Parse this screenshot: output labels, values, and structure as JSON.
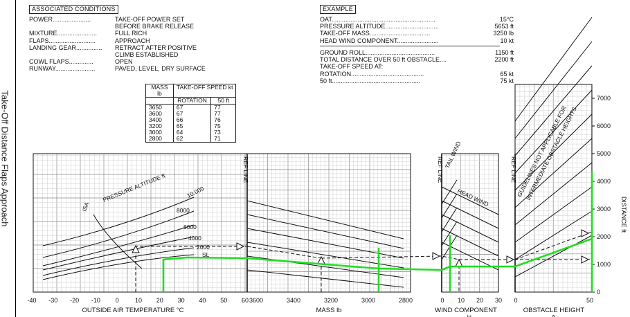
{
  "side_title": "Take-Off Distance Flaps Approach",
  "associated": {
    "heading": "ASSOCIATED CONDITIONS",
    "rows": [
      {
        "key": "POWER......................",
        "value": "TAKE-OFF POWER SET"
      },
      {
        "key": "",
        "value": "BEFORE BRAKE RELEASE"
      },
      {
        "key": "MIXTURE.......................",
        "value": "FULL RICH"
      },
      {
        "key": "FLAPS...........................",
        "value": "APPROACH"
      },
      {
        "key": "LANDING GEAR...............",
        "value": "RETRACT AFTER POSITIVE"
      },
      {
        "key": "",
        "value": "CLIMB ESTABLISHED"
      },
      {
        "key": "COWL FLAPS..............",
        "value": "OPEN"
      },
      {
        "key": "RUNWAY.......................",
        "value": "PAVED, LEVEL, DRY SURFACE"
      }
    ]
  },
  "example": {
    "heading": "EXAMPLE",
    "rows1": [
      {
        "key": "OAT............................................................",
        "value": "15°C"
      },
      {
        "key": "PRESSURE ALTITUDE...............................",
        "value": "5653 ft"
      },
      {
        "key": "TAKE-OFF MASS...................................",
        "value": "3250 lb"
      },
      {
        "key": "HEAD WIND COMPONENT........................",
        "value": "10 kt"
      }
    ],
    "rows2": [
      {
        "key": "GROUND ROLL........................................",
        "value": "1150 ft"
      },
      {
        "key": "TOTAL DISTANCE OVER 50 ft OBSTACLE....",
        "value": "2200 ft"
      },
      {
        "key": "TAKE-OFF SPEED AT:",
        "value": ""
      },
      {
        "key": "      ROTATION..........................................",
        "value": "65 kt"
      },
      {
        "key": "      50 ft...................................................",
        "value": "75 kt"
      }
    ]
  },
  "speed_table": {
    "mass_header": "MASS",
    "mass_unit": "lb",
    "speed_header": "TAKE-OFF SPEED kt",
    "col_rotation": "ROTATION",
    "col_50ft": "50 ft",
    "rows": [
      [
        "3650",
        "67",
        "77"
      ],
      [
        "3600",
        "67",
        "77"
      ],
      [
        "3400",
        "66",
        "76"
      ],
      [
        "3200",
        "65",
        "75"
      ],
      [
        "3000",
        "64",
        "73"
      ],
      [
        "2800",
        "62",
        "71"
      ]
    ]
  },
  "chart_data": {
    "type": "line",
    "panels": [
      {
        "name": "temperature",
        "xlabel": "OUTSIDE AIR TEMPERATURE °C",
        "ticks": [
          "-40",
          "-30",
          "-20",
          "-10",
          "0",
          "10",
          "20",
          "30",
          "40",
          "50",
          "60"
        ],
        "curve_labels": [
          "PRESSURE ALTITUDE  ft",
          "10,000",
          "8000",
          "6000",
          "4000",
          "2000",
          "SL",
          "ISA"
        ]
      },
      {
        "name": "mass",
        "xlabel": "MASS  lb",
        "ticks": [
          "3600",
          "3400",
          "3200",
          "3000",
          "2800"
        ],
        "ref_label": "REF LINE"
      },
      {
        "name": "wind",
        "xlabel": "WIND COMPONENT",
        "unit": "kt",
        "ticks": [
          "0",
          "10",
          "20",
          "30"
        ],
        "ref_label": "REF LINE",
        "labels": [
          "TAIL WIND",
          "HEAD WIND"
        ]
      },
      {
        "name": "obstacle",
        "xlabel": "OBSTACLE HEIGHT",
        "unit": "ft",
        "ticks": [
          "0",
          "50"
        ],
        "ref_label": "REF LINE",
        "note": [
          "GUIDELINES NOT APPLICABLE FOR",
          "INTERMEDIATE OBSTACLE HEIGHTS"
        ]
      }
    ],
    "y_axis": {
      "label": "DISTANCE  ft",
      "ticks": [
        "0",
        "1000",
        "2000",
        "3000",
        "4000",
        "5000",
        "6000",
        "7000"
      ],
      "range": [
        0,
        7000
      ]
    },
    "example_path": {
      "oat": 15,
      "pressure_altitude": 5653,
      "mass": 3250,
      "head_wind": 10,
      "ground_roll": 1150,
      "total_distance_50ft": 2200
    },
    "highlight_color": "#22dd22"
  }
}
